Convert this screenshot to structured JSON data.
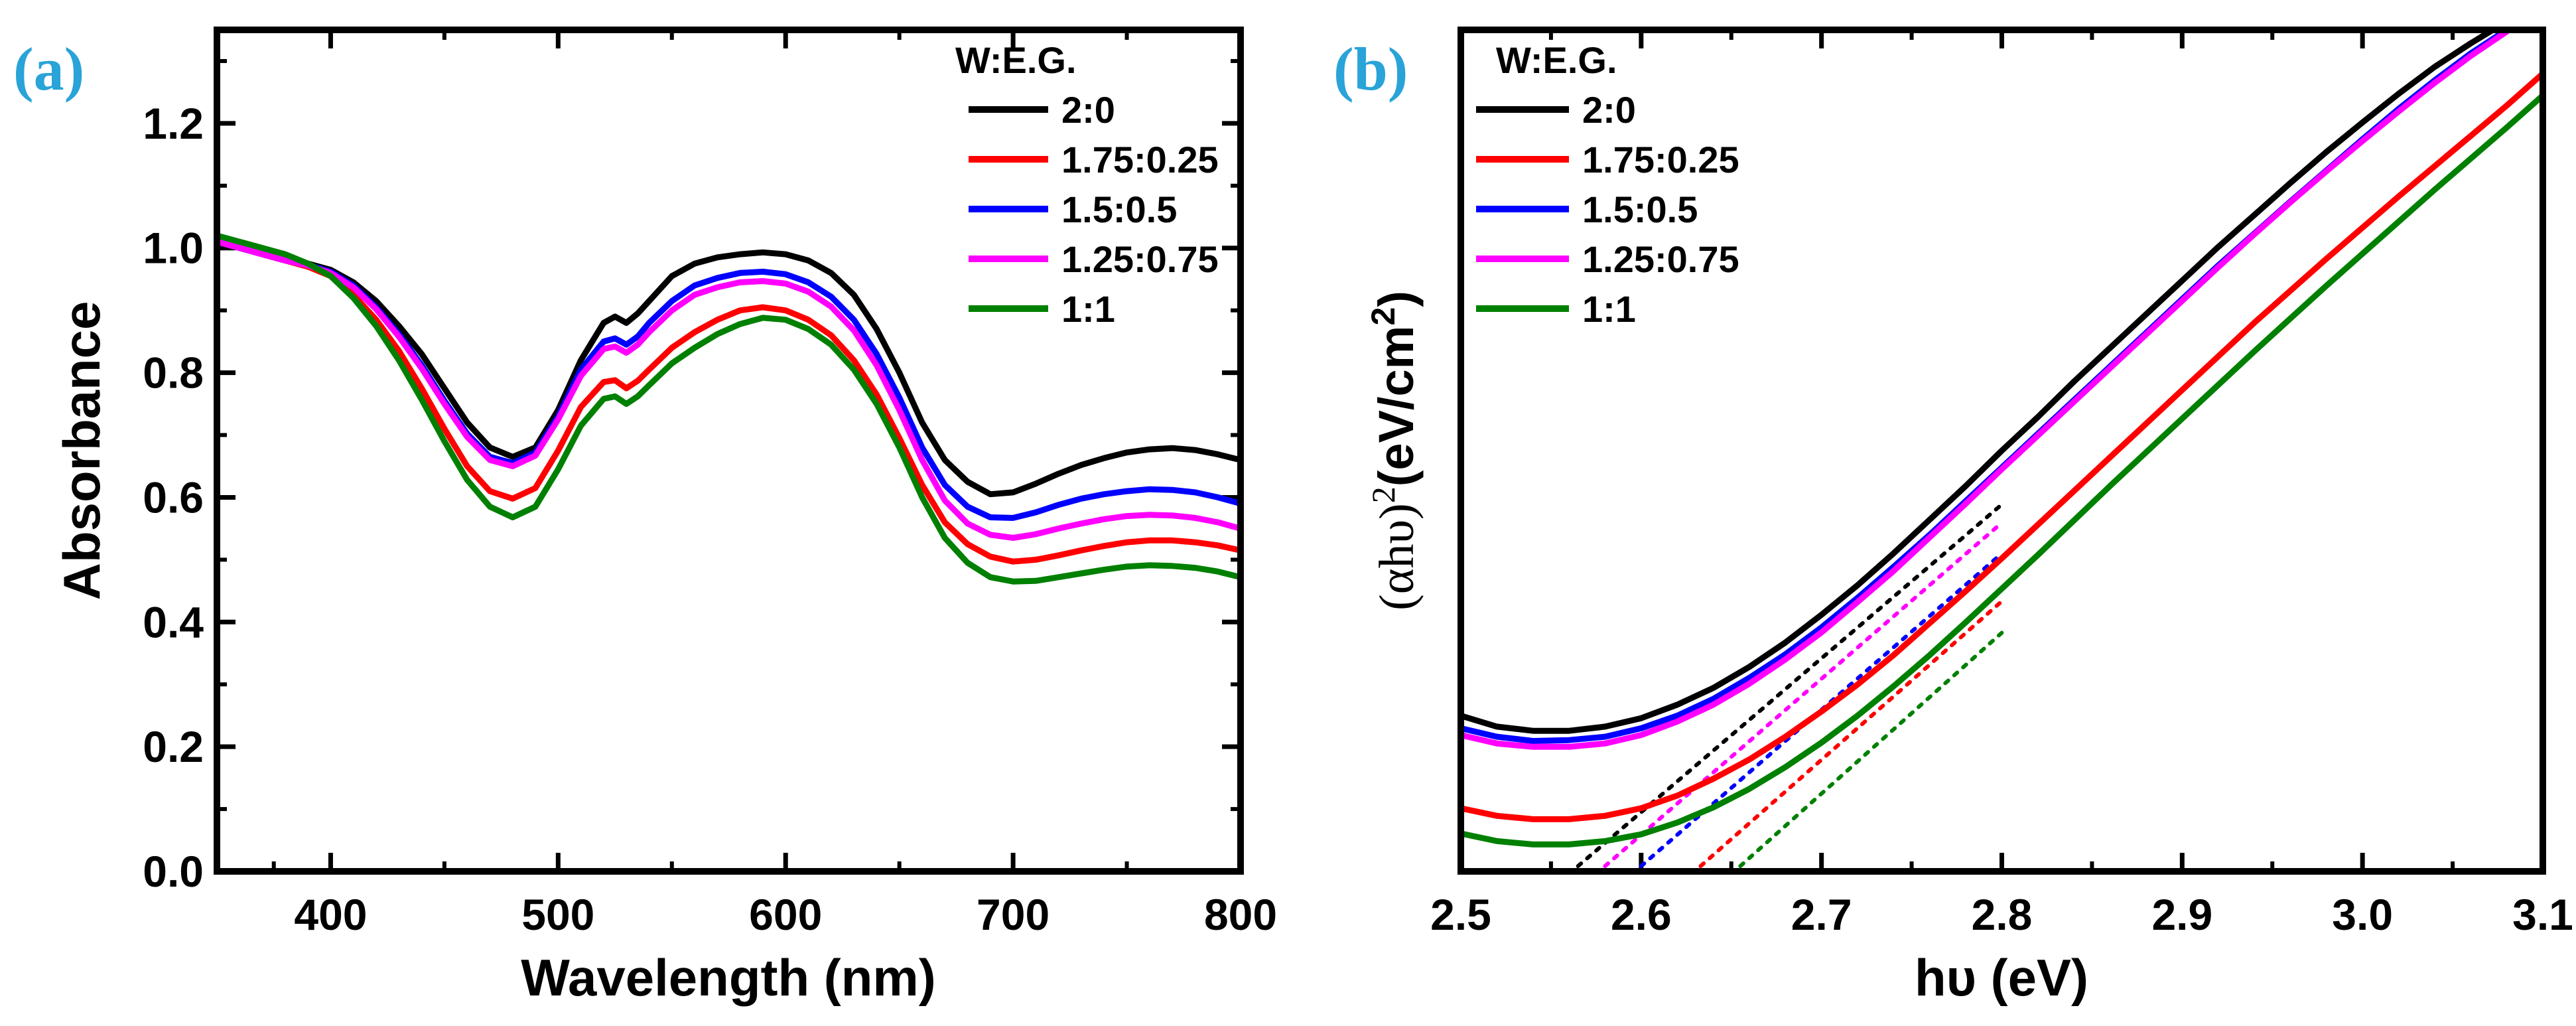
{
  "figure": {
    "panel_a_label": "(a)",
    "panel_b_label": "(b)"
  },
  "chart_data": [
    {
      "id": "a",
      "type": "line",
      "xlabel": "Wavelength (nm)",
      "ylabel": "Absorbance",
      "xlim": [
        350,
        800
      ],
      "ylim": [
        0,
        1.35
      ],
      "xticks": [
        400,
        500,
        600,
        700,
        800
      ],
      "xtick_labels": [
        "400",
        "500",
        "600",
        "700",
        "800"
      ],
      "yticks": [
        0,
        0.2,
        0.4,
        0.6,
        0.8,
        1.0,
        1.2
      ],
      "ytick_labels": [
        "0.0",
        "0.2",
        "0.4",
        "0.6",
        "0.8",
        "1.0",
        "1.2"
      ],
      "legend_title": "W:E.G.",
      "legend_position": "top-right",
      "x": [
        350,
        360,
        370,
        380,
        390,
        400,
        410,
        420,
        430,
        440,
        450,
        460,
        470,
        480,
        490,
        500,
        510,
        520,
        525,
        530,
        535,
        540,
        550,
        560,
        570,
        580,
        590,
        600,
        610,
        620,
        630,
        640,
        650,
        660,
        670,
        680,
        690,
        700,
        710,
        720,
        730,
        740,
        750,
        760,
        770,
        780,
        790,
        800
      ],
      "series": [
        {
          "name": "2:0",
          "color": "#000000",
          "values": [
            1.01,
            1.0,
            0.99,
            0.98,
            0.975,
            0.965,
            0.945,
            0.915,
            0.875,
            0.83,
            0.775,
            0.72,
            0.68,
            0.665,
            0.68,
            0.74,
            0.82,
            0.88,
            0.89,
            0.88,
            0.895,
            0.915,
            0.955,
            0.975,
            0.985,
            0.99,
            0.993,
            0.99,
            0.98,
            0.96,
            0.925,
            0.87,
            0.8,
            0.72,
            0.66,
            0.625,
            0.605,
            0.608,
            0.622,
            0.638,
            0.652,
            0.663,
            0.672,
            0.677,
            0.679,
            0.676,
            0.669,
            0.66
          ]
        },
        {
          "name": "1.75:0.25",
          "color": "#ff0000",
          "values": [
            1.01,
            1.0,
            0.99,
            0.98,
            0.97,
            0.955,
            0.925,
            0.885,
            0.835,
            0.775,
            0.71,
            0.65,
            0.61,
            0.598,
            0.615,
            0.675,
            0.745,
            0.785,
            0.788,
            0.775,
            0.787,
            0.805,
            0.84,
            0.865,
            0.885,
            0.9,
            0.905,
            0.9,
            0.885,
            0.86,
            0.82,
            0.765,
            0.695,
            0.62,
            0.56,
            0.525,
            0.505,
            0.497,
            0.5,
            0.507,
            0.515,
            0.522,
            0.528,
            0.531,
            0.531,
            0.528,
            0.523,
            0.515
          ]
        },
        {
          "name": "1.5:0.5",
          "color": "#0000ff",
          "values": [
            1.01,
            1.0,
            0.99,
            0.98,
            0.973,
            0.962,
            0.94,
            0.905,
            0.862,
            0.812,
            0.755,
            0.702,
            0.665,
            0.655,
            0.672,
            0.73,
            0.805,
            0.85,
            0.855,
            0.845,
            0.858,
            0.88,
            0.915,
            0.94,
            0.952,
            0.96,
            0.962,
            0.958,
            0.945,
            0.922,
            0.885,
            0.83,
            0.76,
            0.68,
            0.62,
            0.585,
            0.568,
            0.567,
            0.576,
            0.588,
            0.598,
            0.605,
            0.61,
            0.613,
            0.612,
            0.608,
            0.6,
            0.59
          ]
        },
        {
          "name": "1.25:0.75",
          "color": "#ff00ff",
          "values": [
            1.01,
            1.0,
            0.99,
            0.98,
            0.972,
            0.96,
            0.937,
            0.902,
            0.858,
            0.807,
            0.75,
            0.697,
            0.66,
            0.65,
            0.667,
            0.725,
            0.795,
            0.838,
            0.842,
            0.832,
            0.845,
            0.865,
            0.9,
            0.925,
            0.937,
            0.945,
            0.947,
            0.943,
            0.93,
            0.906,
            0.868,
            0.812,
            0.74,
            0.66,
            0.595,
            0.558,
            0.54,
            0.535,
            0.541,
            0.55,
            0.558,
            0.565,
            0.57,
            0.572,
            0.571,
            0.567,
            0.56,
            0.55
          ]
        },
        {
          "name": "1:1",
          "color": "#008000",
          "values": [
            1.02,
            1.01,
            1.0,
            0.99,
            0.975,
            0.955,
            0.92,
            0.875,
            0.82,
            0.757,
            0.69,
            0.628,
            0.585,
            0.568,
            0.585,
            0.645,
            0.715,
            0.758,
            0.762,
            0.75,
            0.762,
            0.78,
            0.815,
            0.84,
            0.862,
            0.878,
            0.888,
            0.885,
            0.87,
            0.845,
            0.805,
            0.75,
            0.68,
            0.6,
            0.535,
            0.495,
            0.472,
            0.465,
            0.466,
            0.472,
            0.478,
            0.484,
            0.489,
            0.491,
            0.49,
            0.487,
            0.481,
            0.472
          ]
        }
      ]
    },
    {
      "id": "b",
      "type": "line",
      "xlabel": "hυ (eV)",
      "ylabel_main": "(αhυ)",
      "ylabel_sup": "2",
      "ylabel_unit": "(eV/cm",
      "ylabel_unit_sup": "2",
      "ylabel_close": ")",
      "xlim": [
        2.5,
        3.1
      ],
      "ylim": [
        0,
        1
      ],
      "xticks": [
        2.5,
        2.6,
        2.7,
        2.8,
        2.9,
        3.0,
        3.1
      ],
      "xtick_labels": [
        "2.5",
        "2.6",
        "2.7",
        "2.8",
        "2.9",
        "3.0",
        "3.1"
      ],
      "y_axis_values_shown": false,
      "legend_title": "W:E.G.",
      "legend_position": "top-left",
      "x": [
        2.5,
        2.52,
        2.54,
        2.56,
        2.58,
        2.6,
        2.62,
        2.64,
        2.66,
        2.68,
        2.7,
        2.72,
        2.74,
        2.76,
        2.78,
        2.8,
        2.82,
        2.84,
        2.86,
        2.88,
        2.9,
        2.92,
        2.94,
        2.96,
        2.98,
        3.0,
        3.02,
        3.04,
        3.06,
        3.08,
        3.1
      ],
      "series": [
        {
          "name": "2:0",
          "color": "#000000",
          "tauc_intercept": 2.565,
          "values": [
            0.185,
            0.172,
            0.167,
            0.167,
            0.172,
            0.182,
            0.198,
            0.218,
            0.243,
            0.272,
            0.305,
            0.34,
            0.378,
            0.418,
            0.458,
            0.5,
            0.54,
            0.582,
            0.622,
            0.662,
            0.702,
            0.742,
            0.78,
            0.818,
            0.855,
            0.89,
            0.924,
            0.956,
            0.984,
            1.01,
            1.04
          ]
        },
        {
          "name": "1.75:0.25",
          "color": "#ff0000",
          "tauc_intercept": 2.633,
          "values": [
            0.075,
            0.066,
            0.062,
            0.062,
            0.066,
            0.075,
            0.09,
            0.11,
            0.133,
            0.16,
            0.19,
            0.222,
            0.257,
            0.295,
            0.333,
            0.372,
            0.412,
            0.452,
            0.492,
            0.532,
            0.572,
            0.612,
            0.652,
            0.69,
            0.728,
            0.765,
            0.802,
            0.838,
            0.874,
            0.91,
            0.948
          ]
        },
        {
          "name": "1.5:0.5",
          "color": "#0000ff",
          "tauc_intercept": 2.6,
          "values": [
            0.17,
            0.16,
            0.155,
            0.156,
            0.16,
            0.17,
            0.185,
            0.205,
            0.23,
            0.258,
            0.29,
            0.325,
            0.362,
            0.4,
            0.44,
            0.48,
            0.52,
            0.56,
            0.6,
            0.64,
            0.68,
            0.72,
            0.758,
            0.796,
            0.833,
            0.87,
            0.906,
            0.94,
            0.972,
            1.0,
            1.03
          ]
        },
        {
          "name": "1.25:0.75",
          "color": "#ff00ff",
          "tauc_intercept": 2.58,
          "values": [
            0.162,
            0.152,
            0.148,
            0.148,
            0.152,
            0.162,
            0.178,
            0.198,
            0.223,
            0.252,
            0.284,
            0.32,
            0.357,
            0.397,
            0.437,
            0.478,
            0.518,
            0.558,
            0.598,
            0.638,
            0.678,
            0.718,
            0.757,
            0.795,
            0.832,
            0.868,
            0.903,
            0.937,
            0.969,
            0.998,
            1.028
          ]
        },
        {
          "name": "1:1",
          "color": "#008000",
          "tauc_intercept": 2.655,
          "values": [
            0.045,
            0.036,
            0.032,
            0.032,
            0.036,
            0.044,
            0.058,
            0.076,
            0.098,
            0.124,
            0.153,
            0.185,
            0.22,
            0.257,
            0.296,
            0.336,
            0.376,
            0.417,
            0.458,
            0.498,
            0.538,
            0.578,
            0.618,
            0.657,
            0.696,
            0.734,
            0.772,
            0.81,
            0.847,
            0.884,
            0.922
          ]
        }
      ]
    }
  ]
}
